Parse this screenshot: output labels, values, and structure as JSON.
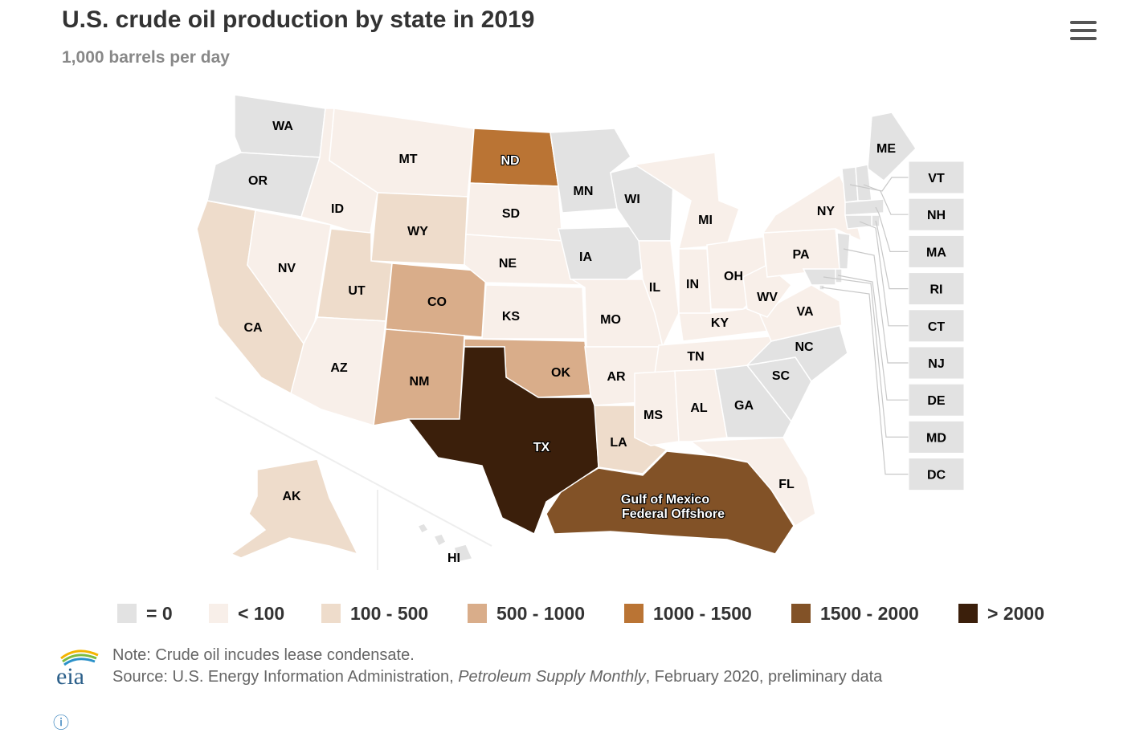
{
  "header": {
    "title": "U.S. crude oil production by state in 2019",
    "subtitle": "1,000 barrels per day"
  },
  "menu": {
    "icon": "hamburger-menu-icon"
  },
  "colors": {
    "zero": "#e2e2e2",
    "lt100": "#f8efe9",
    "r100_500": "#eedccb",
    "r500_1000": "#d9ad8a",
    "r1000_1500": "#ba7434",
    "r1500_2000": "#825227",
    "gt2000": "#3b1f0b"
  },
  "legend": [
    {
      "label": "= 0",
      "bin": "zero"
    },
    {
      "label": "< 100",
      "bin": "lt100"
    },
    {
      "label": "100 - 500",
      "bin": "r100_500"
    },
    {
      "label": "500 - 1000",
      "bin": "r500_1000"
    },
    {
      "label": "1000 - 1500",
      "bin": "r1000_1500"
    },
    {
      "label": "1500 - 2000",
      "bin": "r1500_2000"
    },
    {
      "label": "> 2000",
      "bin": "gt2000"
    }
  ],
  "states": [
    {
      "abbr": "WA",
      "bin": "zero"
    },
    {
      "abbr": "OR",
      "bin": "zero"
    },
    {
      "abbr": "CA",
      "bin": "r100_500"
    },
    {
      "abbr": "NV",
      "bin": "lt100"
    },
    {
      "abbr": "ID",
      "bin": "lt100"
    },
    {
      "abbr": "MT",
      "bin": "lt100"
    },
    {
      "abbr": "WY",
      "bin": "r100_500"
    },
    {
      "abbr": "UT",
      "bin": "r100_500"
    },
    {
      "abbr": "AZ",
      "bin": "lt100"
    },
    {
      "abbr": "CO",
      "bin": "r500_1000"
    },
    {
      "abbr": "NM",
      "bin": "r500_1000"
    },
    {
      "abbr": "ND",
      "bin": "r1000_1500"
    },
    {
      "abbr": "SD",
      "bin": "lt100"
    },
    {
      "abbr": "NE",
      "bin": "lt100"
    },
    {
      "abbr": "KS",
      "bin": "lt100"
    },
    {
      "abbr": "OK",
      "bin": "r500_1000"
    },
    {
      "abbr": "TX",
      "bin": "gt2000"
    },
    {
      "abbr": "MN",
      "bin": "zero"
    },
    {
      "abbr": "IA",
      "bin": "zero"
    },
    {
      "abbr": "MO",
      "bin": "lt100"
    },
    {
      "abbr": "AR",
      "bin": "lt100"
    },
    {
      "abbr": "LA",
      "bin": "r100_500"
    },
    {
      "abbr": "WI",
      "bin": "zero"
    },
    {
      "abbr": "IL",
      "bin": "lt100"
    },
    {
      "abbr": "MI",
      "bin": "lt100"
    },
    {
      "abbr": "IN",
      "bin": "lt100"
    },
    {
      "abbr": "OH",
      "bin": "lt100"
    },
    {
      "abbr": "KY",
      "bin": "lt100"
    },
    {
      "abbr": "TN",
      "bin": "lt100"
    },
    {
      "abbr": "MS",
      "bin": "lt100"
    },
    {
      "abbr": "AL",
      "bin": "lt100"
    },
    {
      "abbr": "GA",
      "bin": "zero"
    },
    {
      "abbr": "FL",
      "bin": "lt100"
    },
    {
      "abbr": "SC",
      "bin": "zero"
    },
    {
      "abbr": "NC",
      "bin": "zero"
    },
    {
      "abbr": "VA",
      "bin": "lt100"
    },
    {
      "abbr": "WV",
      "bin": "lt100"
    },
    {
      "abbr": "PA",
      "bin": "lt100"
    },
    {
      "abbr": "NY",
      "bin": "lt100"
    },
    {
      "abbr": "ME",
      "bin": "zero"
    },
    {
      "abbr": "AK",
      "bin": "r100_500"
    },
    {
      "abbr": "HI",
      "bin": "zero"
    }
  ],
  "small_states": [
    {
      "abbr": "VT",
      "bin": "zero"
    },
    {
      "abbr": "NH",
      "bin": "zero"
    },
    {
      "abbr": "MA",
      "bin": "zero"
    },
    {
      "abbr": "RI",
      "bin": "zero"
    },
    {
      "abbr": "CT",
      "bin": "zero"
    },
    {
      "abbr": "NJ",
      "bin": "zero"
    },
    {
      "abbr": "DE",
      "bin": "zero"
    },
    {
      "abbr": "MD",
      "bin": "zero"
    },
    {
      "abbr": "DC",
      "bin": "zero"
    }
  ],
  "offshore": {
    "line1": "Gulf of Mexico",
    "line2": "Federal Offshore",
    "bin": "r1500_2000"
  },
  "footer": {
    "logo": "eia",
    "note": "Note: Crude oil incudes lease condensate.",
    "source_prefix": "Source: U.S. Energy Information Administration, ",
    "source_publication": "Petroleum Supply Monthly",
    "source_suffix": ", February 2020, preliminary data"
  }
}
